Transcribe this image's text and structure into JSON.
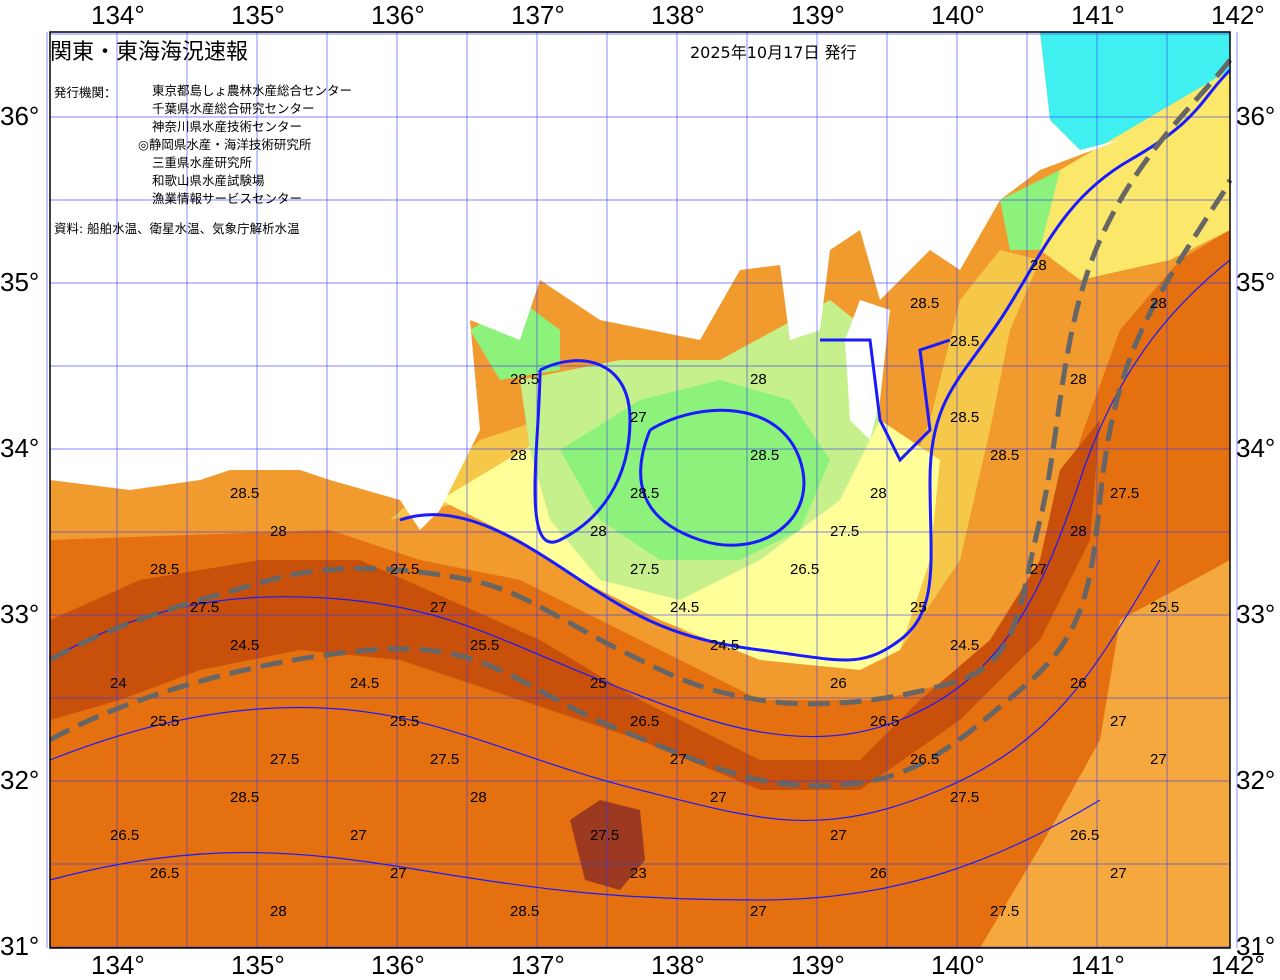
{
  "header": {
    "title": "関東・東海海況速報",
    "issue_date": "2025年10月17日 発行"
  },
  "agencies": {
    "label": "発行機関：",
    "items": [
      "東京都島しょ農林水産総合センター",
      "千葉県水産総合研究センター",
      "神奈川県水産技術センター",
      "◎静岡県水産・海洋技術研究所",
      "三重県水産研究所",
      "和歌山県水産試験場",
      "漁業情報サービスセンター"
    ]
  },
  "source": "資料: 船舶水温、衛星水温、気象庁解析水温",
  "axes": {
    "longitude_ticks": [
      "134°",
      "135°",
      "136°",
      "137°",
      "138°",
      "139°",
      "140°",
      "141°",
      "142°"
    ],
    "latitude_ticks": [
      "36°",
      "35°",
      "34°",
      "33°",
      "32°",
      "31°"
    ],
    "lon_range": [
      133.5,
      142
    ],
    "lat_range": [
      31,
      36.5
    ]
  },
  "contour_labels": [
    "28",
    "28.5",
    "28",
    "28.5",
    "28.5",
    "28",
    "28",
    "27",
    "28.5",
    "28",
    "28.5",
    "28.5",
    "28.5",
    "28.5",
    "28",
    "27.5",
    "28",
    "28",
    "27.5",
    "28",
    "28.5",
    "27.5",
    "27.5",
    "26.5",
    "27",
    "27.5",
    "27",
    "24.5",
    "25",
    "25.5",
    "24.5",
    "25.5",
    "24.5",
    "24.5",
    "24",
    "24.5",
    "25",
    "26",
    "26",
    "25.5",
    "25.5",
    "26.5",
    "26.5",
    "27",
    "27.5",
    "27.5",
    "27",
    "26.5",
    "27",
    "28.5",
    "28",
    "27",
    "27.5",
    "26.5",
    "27",
    "27.5",
    "27",
    "26.5",
    "26.5",
    "27",
    "23",
    "26",
    "27",
    "28",
    "28.5",
    "27",
    "27.5"
  ],
  "colors": {
    "ocean_base": "#f19a2e",
    "warm_band": "#e5700f",
    "hot_core": "#c9500a",
    "hottest": "#9b3a20",
    "mid_yellow": "#f5c84a",
    "yellow": "#fbe86a",
    "pale_yellow": "#ffff99",
    "light_green": "#c6f08c",
    "green": "#8cf27c",
    "cyan": "#40f0f0",
    "contour": "#1a1aff",
    "kuroshio_axis": "#666666"
  }
}
